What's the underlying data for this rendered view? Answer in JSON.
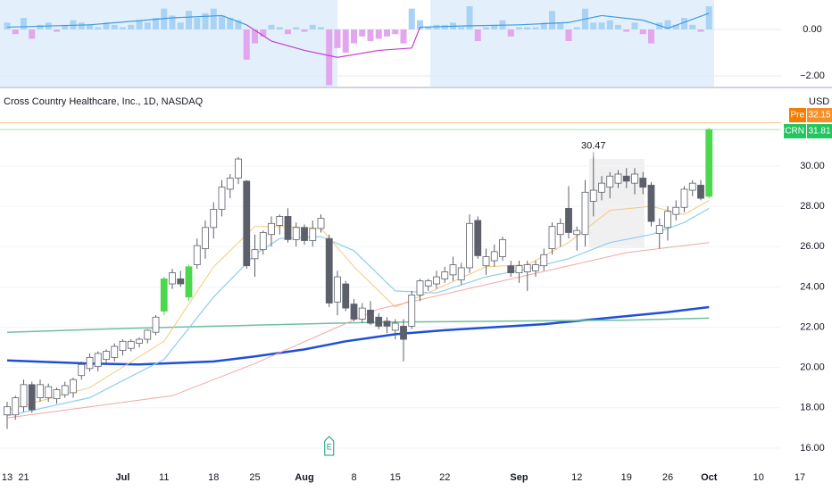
{
  "chart_data": {
    "type": "candlestick",
    "title": "Cross Country Healthcare, Inc., 1D, NASDAQ",
    "currency": "USD",
    "categories": [
      "13",
      null,
      "21",
      null,
      null,
      null,
      null,
      null,
      null,
      null,
      null,
      null,
      null,
      null,
      "Jul",
      null,
      null,
      null,
      null,
      "11",
      null,
      null,
      null,
      null,
      null,
      "18",
      null,
      null,
      null,
      null,
      "25",
      null,
      null,
      null,
      null,
      null,
      "Aug",
      null,
      null,
      null,
      null,
      null,
      "8",
      null,
      null,
      null,
      null,
      "15",
      null,
      null,
      null,
      null,
      null,
      "22",
      null,
      null,
      null,
      null,
      null,
      null,
      null,
      null,
      "Sep",
      null,
      null,
      null,
      null,
      null,
      null,
      "12",
      null,
      null,
      null,
      null,
      null,
      "19",
      null,
      null,
      null,
      null,
      "26",
      null,
      null,
      null,
      null,
      "Oct",
      null,
      null,
      null,
      null,
      null,
      "10",
      null,
      null,
      null,
      null,
      "17"
    ],
    "open": [
      17.65,
      17.65,
      18.05,
      19.15,
      18.5,
      18.5,
      18.45,
      18.65,
      18.75,
      19.6,
      19.95,
      20.05,
      20.4,
      20.5,
      20.85,
      20.95,
      21.2,
      21.4,
      21.75,
      22.8,
      24.15,
      24.4,
      23.5,
      25.1,
      25.9,
      26.95,
      27.85,
      28.85,
      29.4,
      29.25,
      25.4,
      25.85,
      26.6,
      27.05,
      27.5,
      26.35,
      26.95,
      26.3,
      26.9,
      26.4,
      23.25,
      24.15,
      23.15,
      22.4,
      22.85,
      22.5,
      22.3,
      21.85,
      22.05,
      22.05,
      23.6,
      24.05,
      24.15,
      24.4,
      24.6,
      24.35,
      24.95,
      27.3,
      25.05,
      25.3,
      25.5,
      25.05,
      24.7,
      24.75,
      24.8,
      25.05,
      25.9,
      26.6,
      27.9,
      26.6,
      26.6,
      28.25,
      28.7,
      28.95,
      29.15,
      29.5,
      29.15,
      29.4,
      29.05,
      26.65,
      26.95,
      27.6,
      27.95,
      28.8,
      29.05,
      28.5,
      null,
      null,
      null,
      null,
      null,
      null,
      null,
      null,
      null,
      null,
      null
    ],
    "high": [
      18.3,
      18.6,
      19.4,
      19.3,
      19.4,
      19.2,
      19.0,
      19.3,
      19.5,
      20.3,
      20.7,
      20.8,
      20.9,
      21.2,
      21.4,
      21.4,
      21.5,
      21.9,
      22.6,
      24.5,
      24.9,
      24.8,
      25.1,
      26.4,
      27.3,
      28.2,
      29.3,
      29.6,
      30.45,
      29.3,
      26.6,
      26.8,
      27.5,
      27.6,
      27.9,
      27.2,
      27.1,
      27.3,
      27.6,
      26.6,
      24.8,
      24.3,
      23.4,
      23.2,
      23.3,
      22.7,
      22.5,
      22.4,
      22.4,
      23.8,
      24.4,
      24.4,
      24.8,
      25.0,
      25.5,
      25.2,
      27.6,
      27.5,
      25.9,
      26.1,
      26.5,
      25.3,
      25.3,
      25.3,
      25.3,
      25.9,
      27.2,
      27.4,
      29.0,
      27.0,
      29.3,
      30.47,
      29.5,
      29.7,
      29.8,
      29.9,
      29.9,
      29.7,
      29.2,
      27.4,
      28.0,
      28.3,
      29.0,
      29.3,
      29.3,
      31.9,
      null,
      null,
      null,
      null,
      null,
      null,
      null,
      null,
      null,
      null,
      null
    ],
    "low": [
      16.95,
      17.4,
      17.8,
      17.75,
      18.3,
      18.3,
      18.2,
      18.5,
      18.5,
      19.4,
      19.8,
      19.8,
      20.2,
      20.3,
      20.6,
      20.8,
      21.0,
      21.2,
      21.6,
      22.6,
      23.9,
      24.0,
      23.3,
      24.9,
      25.4,
      26.4,
      27.5,
      28.4,
      29.1,
      24.9,
      24.5,
      25.6,
      26.0,
      26.6,
      26.2,
      26.0,
      26.1,
      26.0,
      26.7,
      23.0,
      22.6,
      22.8,
      22.3,
      22.2,
      22.1,
      21.9,
      21.7,
      21.4,
      20.3,
      21.9,
      23.3,
      23.8,
      23.9,
      24.2,
      24.3,
      24.1,
      24.7,
      25.4,
      24.6,
      25.0,
      25.3,
      24.5,
      24.2,
      23.8,
      24.5,
      24.8,
      25.6,
      26.0,
      26.4,
      25.8,
      26.0,
      27.5,
      28.3,
      28.4,
      28.9,
      28.9,
      28.6,
      28.6,
      27.0,
      25.9,
      26.3,
      27.3,
      27.7,
      28.5,
      28.3,
      28.4,
      null,
      null,
      null,
      null,
      null,
      null,
      null,
      null,
      null,
      null,
      null
    ],
    "close": [
      18.05,
      18.5,
      19.15,
      17.9,
      19.15,
      19.05,
      18.9,
      19.1,
      19.4,
      20.15,
      20.5,
      20.7,
      20.8,
      21.05,
      21.3,
      21.3,
      21.4,
      21.85,
      22.5,
      24.4,
      24.7,
      24.15,
      25.0,
      26.05,
      26.95,
      27.85,
      28.95,
      29.4,
      30.35,
      25.05,
      25.85,
      26.7,
      27.15,
      27.5,
      26.35,
      26.95,
      26.3,
      26.9,
      27.4,
      23.2,
      24.5,
      22.95,
      22.4,
      22.95,
      22.2,
      22.05,
      22.05,
      22.2,
      21.4,
      23.6,
      24.3,
      24.3,
      24.5,
      24.75,
      25.1,
      24.95,
      27.15,
      25.55,
      25.5,
      25.75,
      26.35,
      24.7,
      25.05,
      25.1,
      25.1,
      25.6,
      27.0,
      27.15,
      26.7,
      26.8,
      28.7,
      28.8,
      29.15,
      29.5,
      29.6,
      29.25,
      29.6,
      28.95,
      27.25,
      27.05,
      27.75,
      27.95,
      28.85,
      29.15,
      28.4,
      31.81,
      null,
      null,
      null,
      null,
      null,
      null,
      null,
      null,
      null,
      null,
      null
    ],
    "up_color": "#ffffff",
    "down_color": "#5d606b",
    "border_color": "#5d606b",
    "highlighted": [
      19,
      22,
      85
    ],
    "highlight_color": "#4cd84c",
    "ylim": [
      15.2,
      33.81
    ],
    "yticks": [
      {
        "value": 16,
        "label": "16.00"
      },
      {
        "value": 18,
        "label": "18.00"
      },
      {
        "value": 20,
        "label": "20.00"
      },
      {
        "value": 22,
        "label": "22.00"
      },
      {
        "value": 24,
        "label": "24.00"
      },
      {
        "value": 26,
        "label": "26.00"
      },
      {
        "value": 28,
        "label": "28.00"
      },
      {
        "value": 30,
        "label": "30.00"
      }
    ],
    "grid": true,
    "lines": [
      {
        "color": "#1e4fd8",
        "width": 2.5,
        "x": [
          0,
          10,
          16,
          25,
          30,
          36,
          41,
          47,
          53,
          59,
          65,
          70,
          75,
          80,
          85
        ],
        "values": [
          20.35,
          20.2,
          20.15,
          20.3,
          20.55,
          20.9,
          21.3,
          21.65,
          21.85,
          22.0,
          22.15,
          22.35,
          22.55,
          22.75,
          23.0
        ]
      },
      {
        "color": "#6fbf9c",
        "width": 1.5,
        "x": [
          0,
          15,
          30,
          45,
          60,
          75,
          85
        ],
        "values": [
          21.75,
          21.95,
          22.1,
          22.25,
          22.3,
          22.35,
          22.45
        ]
      },
      {
        "color": "#8fcdee",
        "width": 1.2,
        "x": [
          0,
          10,
          19,
          25,
          30,
          33,
          38,
          42,
          47,
          52,
          58,
          63,
          68,
          73,
          78,
          82,
          85
        ],
        "values": [
          17.6,
          18.5,
          20.4,
          23.5,
          25.6,
          26.4,
          26.5,
          25.8,
          23.8,
          23.7,
          24.5,
          24.9,
          25.4,
          26.2,
          26.6,
          27.2,
          27.9
        ]
      },
      {
        "color": "#f5c97a",
        "width": 1,
        "x": [
          0,
          10,
          19,
          25,
          30,
          34,
          38,
          42,
          47,
          52,
          58,
          63,
          68,
          73,
          78,
          82,
          85
        ],
        "values": [
          17.9,
          19.0,
          21.3,
          25.0,
          27.0,
          27.0,
          26.9,
          25.0,
          23.0,
          23.9,
          25.0,
          25.1,
          26.2,
          27.8,
          28.0,
          27.6,
          28.3
        ]
      },
      {
        "color": "#f2a6a6",
        "width": 1,
        "x": [
          0,
          20,
          30,
          45,
          60,
          75,
          85
        ],
        "values": [
          17.5,
          18.6,
          20.2,
          22.9,
          24.3,
          25.7,
          26.2
        ]
      }
    ],
    "annotation": {
      "label": "30.47",
      "value": 30.47,
      "x": 71
    },
    "events": [
      {
        "label": "E",
        "x": 39
      }
    ],
    "pre_market": {
      "label": "Pre",
      "value": 32.15,
      "color": "#f57c00"
    },
    "last": {
      "label": "CCRN",
      "value": 31.81,
      "color": "#22c55e"
    },
    "indicator": {
      "ylim": [
        -2.46,
        1.27
      ],
      "yticks": [
        {
          "value": -2,
          "label": "−2.00"
        },
        {
          "value": 0,
          "label": "0.00"
        }
      ],
      "positive_color": "#a9d3f5",
      "negative_color": "#e1a6ee",
      "values": [
        0.3,
        -0.2,
        0.5,
        -0.4,
        0.2,
        0.3,
        -0.1,
        0.2,
        0.4,
        0.3,
        0.2,
        0.1,
        0.3,
        0.2,
        0.1,
        0.2,
        0.4,
        0.3,
        0.5,
        0.9,
        0.6,
        0.3,
        0.8,
        0.5,
        0.7,
        0.9,
        0.6,
        0.5,
        0.4,
        -1.3,
        -0.6,
        -0.3,
        0.2,
        0.1,
        -0.2,
        0.1,
        -0.1,
        0.2,
        0.1,
        -2.4,
        -0.8,
        -1.0,
        -0.6,
        -0.3,
        -0.5,
        -0.4,
        -0.3,
        -0.2,
        -0.6,
        0.9,
        0.4,
        0.1,
        0.2,
        0.2,
        0.3,
        0.1,
        1.0,
        -0.5,
        0.1,
        0.2,
        0.4,
        -0.3,
        0.1,
        0.1,
        0.1,
        0.3,
        0.8,
        0.3,
        -0.5,
        0.1,
        0.9,
        0.3,
        0.3,
        0.4,
        0.2,
        -0.1,
        0.3,
        -0.2,
        -0.6,
        0.3,
        0.4,
        0.2,
        0.5,
        0.2,
        -0.1,
        1.0,
        null,
        null,
        null,
        null,
        null,
        null,
        null,
        null,
        null,
        null,
        null
      ],
      "line": {
        "positive_color": "#3d9be0",
        "negative_color": "#c03ed0",
        "x": [
          0,
          10,
          20,
          26,
          29,
          32,
          36,
          40,
          45,
          49,
          50,
          55,
          62,
          68,
          72,
          77,
          80,
          85
        ],
        "values": [
          0.1,
          0.2,
          0.5,
          0.6,
          0.2,
          -0.5,
          -0.9,
          -1.2,
          -0.9,
          -0.8,
          0.1,
          0.15,
          0.2,
          0.3,
          0.6,
          0.4,
          0.05,
          0.7
        ]
      }
    }
  }
}
